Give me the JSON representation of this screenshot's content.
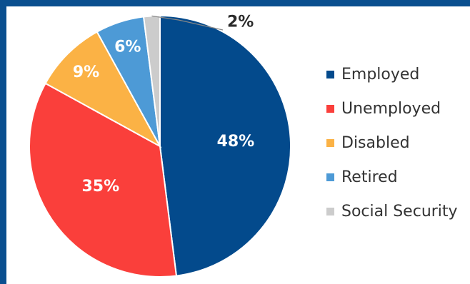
{
  "chart_data": {
    "type": "pie",
    "title": "",
    "slices": [
      {
        "label": "Employed",
        "value": 48,
        "display": "48%",
        "color": "#034a8c",
        "label_color": "#ffffff"
      },
      {
        "label": "Unemployed",
        "value": 35,
        "display": "35%",
        "color": "#fa3f3b",
        "label_color": "#ffffff"
      },
      {
        "label": "Disabled",
        "value": 9,
        "display": "9%",
        "color": "#fbb245",
        "label_color": "#ffffff"
      },
      {
        "label": "Retired",
        "value": 6,
        "display": "6%",
        "color": "#4d9ad6",
        "label_color": "#ffffff"
      },
      {
        "label": "Social Security",
        "value": 2,
        "display": "2%",
        "color": "#cccccc",
        "label_color": "#2b2b2b"
      }
    ],
    "legend_position": "right",
    "start_angle": "12 o'clock",
    "direction": "clockwise"
  },
  "colors": {
    "border": "#0a4f8f",
    "background": "#ffffff"
  }
}
